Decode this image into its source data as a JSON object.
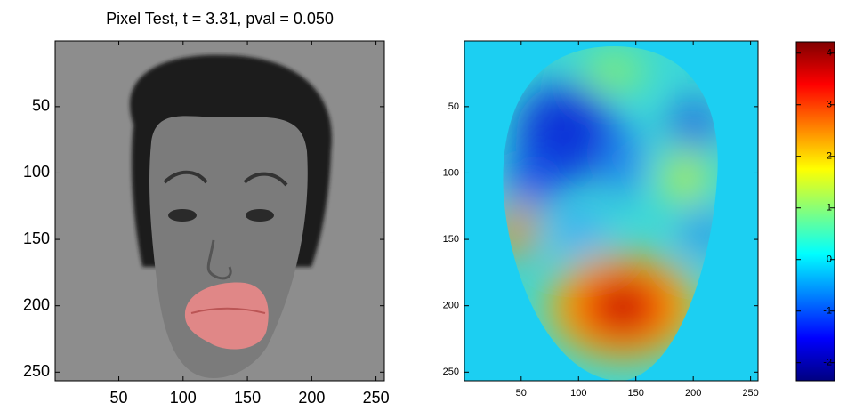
{
  "chart_data": [
    {
      "type": "image",
      "title": "Pixel Test, t = 3.31, pval = 0.050",
      "xlim": [
        0.5,
        256.5
      ],
      "ylim": [
        256.5,
        0.5
      ],
      "xticks": [
        50,
        100,
        150,
        200,
        250
      ],
      "yticks": [
        50,
        100,
        150,
        200,
        250
      ]
    },
    {
      "type": "heatmap",
      "xlim": [
        0.5,
        256.5
      ],
      "ylim": [
        256.5,
        0.5
      ],
      "xticks": [
        50,
        100,
        150,
        200,
        250
      ],
      "yticks": [
        50,
        100,
        150,
        200,
        250
      ]
    },
    {
      "type": "colorbar",
      "colormap": "jet",
      "ylim": [
        -2.35,
        4.22
      ],
      "yticks": [
        -2,
        -1,
        0,
        1,
        2,
        3,
        4
      ]
    }
  ]
}
